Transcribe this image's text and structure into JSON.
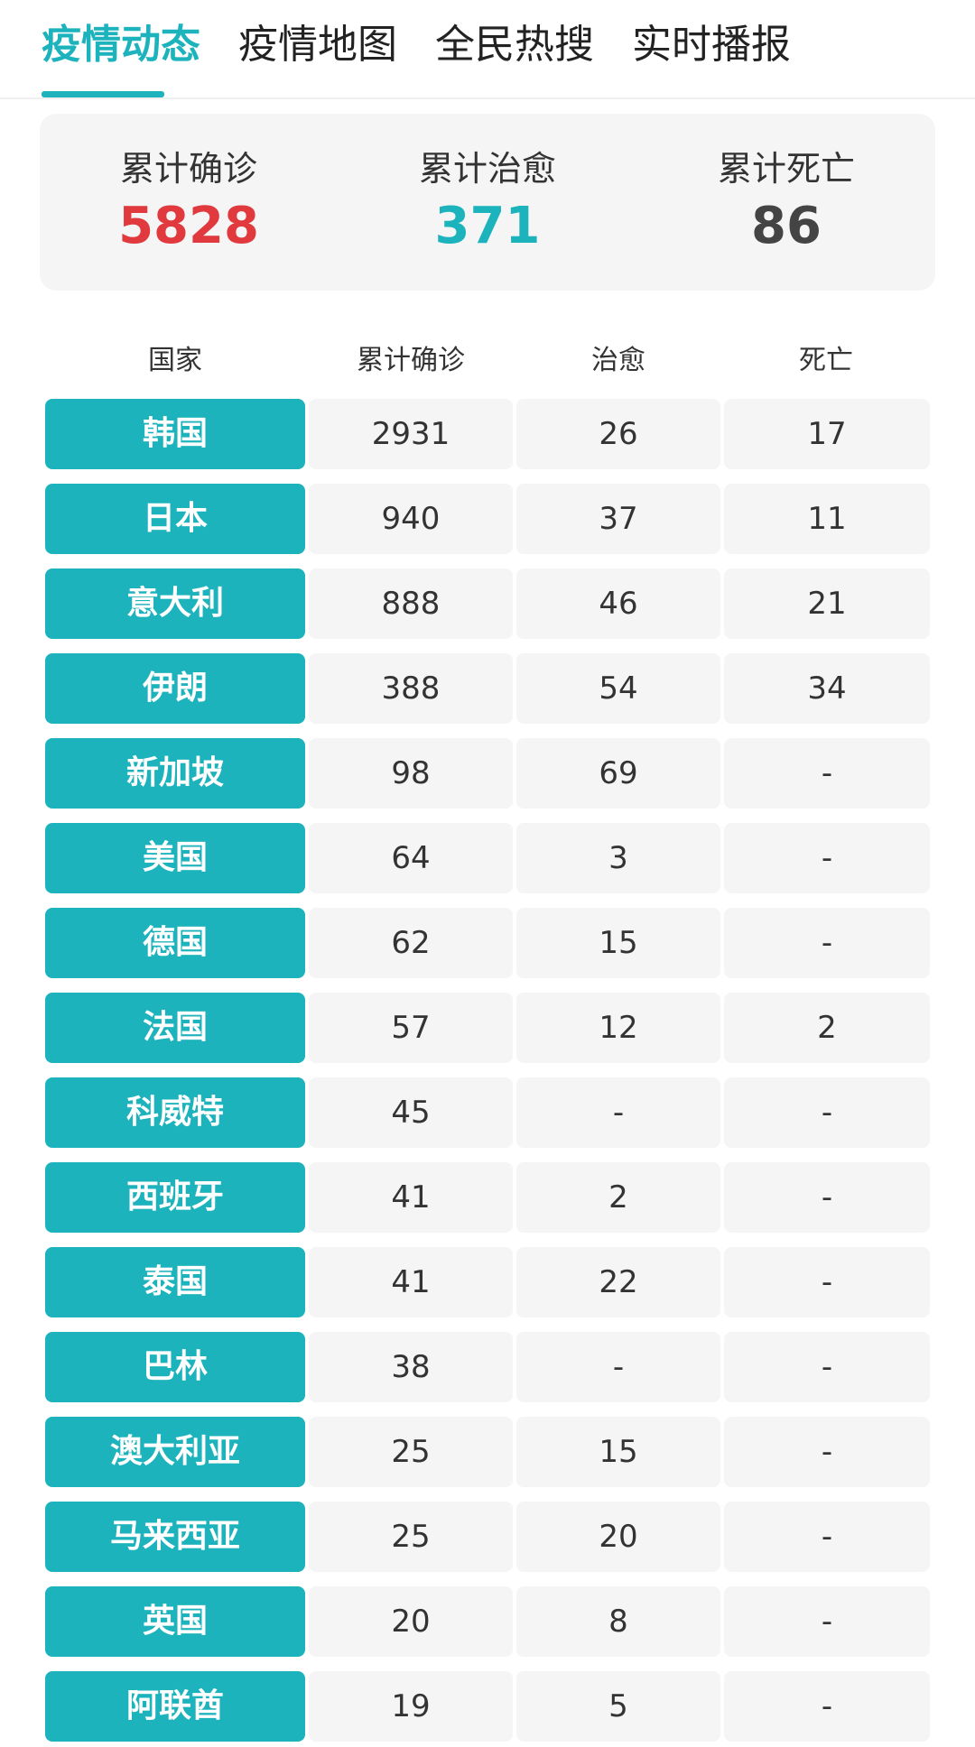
{
  "tabs": [
    {
      "label": "疫情动态",
      "active": true
    },
    {
      "label": "疫情地图",
      "active": false
    },
    {
      "label": "全民热搜",
      "active": false
    },
    {
      "label": "实时播报",
      "active": false
    }
  ],
  "summary": {
    "confirmed": {
      "label": "累计确诊",
      "value": "5828",
      "color": "#e0393e"
    },
    "recovered": {
      "label": "累计治愈",
      "value": "371",
      "color": "#1cb3bd"
    },
    "deaths": {
      "label": "累计死亡",
      "value": "86",
      "color": "#444444"
    }
  },
  "table": {
    "headers": [
      "国家",
      "累计确诊",
      "治愈",
      "死亡"
    ],
    "rows": [
      {
        "country": "韩国",
        "confirmed": "2931",
        "recovered": "26",
        "deaths": "17"
      },
      {
        "country": "日本",
        "confirmed": "940",
        "recovered": "37",
        "deaths": "11"
      },
      {
        "country": "意大利",
        "confirmed": "888",
        "recovered": "46",
        "deaths": "21"
      },
      {
        "country": "伊朗",
        "confirmed": "388",
        "recovered": "54",
        "deaths": "34"
      },
      {
        "country": "新加坡",
        "confirmed": "98",
        "recovered": "69",
        "deaths": "-"
      },
      {
        "country": "美国",
        "confirmed": "64",
        "recovered": "3",
        "deaths": "-"
      },
      {
        "country": "德国",
        "confirmed": "62",
        "recovered": "15",
        "deaths": "-"
      },
      {
        "country": "法国",
        "confirmed": "57",
        "recovered": "12",
        "deaths": "2"
      },
      {
        "country": "科威特",
        "confirmed": "45",
        "recovered": "-",
        "deaths": "-"
      },
      {
        "country": "西班牙",
        "confirmed": "41",
        "recovered": "2",
        "deaths": "-"
      },
      {
        "country": "泰国",
        "confirmed": "41",
        "recovered": "22",
        "deaths": "-"
      },
      {
        "country": "巴林",
        "confirmed": "38",
        "recovered": "-",
        "deaths": "-"
      },
      {
        "country": "澳大利亚",
        "confirmed": "25",
        "recovered": "15",
        "deaths": "-"
      },
      {
        "country": "马来西亚",
        "confirmed": "25",
        "recovered": "20",
        "deaths": "-"
      },
      {
        "country": "英国",
        "confirmed": "20",
        "recovered": "8",
        "deaths": "-"
      },
      {
        "country": "阿联酋",
        "confirmed": "19",
        "recovered": "5",
        "deaths": "-"
      }
    ]
  },
  "colors": {
    "accent": "#1cb3bd",
    "confirmed": "#e0393e",
    "card_bg": "#f5f5f5"
  }
}
